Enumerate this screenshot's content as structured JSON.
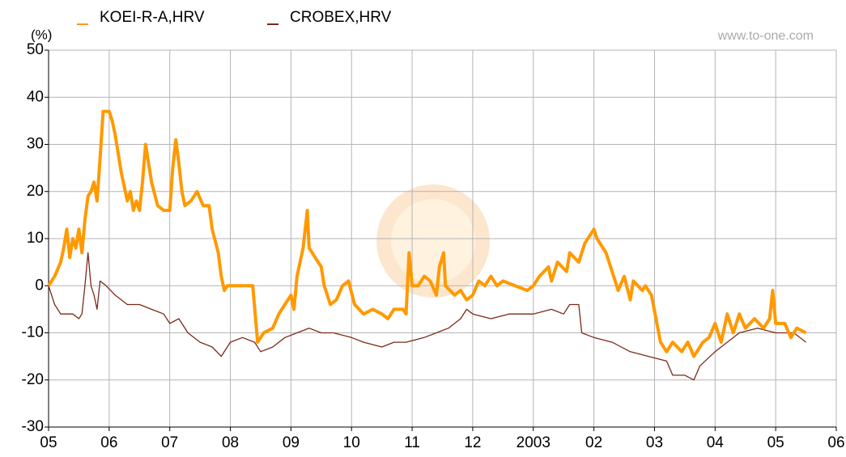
{
  "chart_data": {
    "type": "line",
    "y_label": "(%)",
    "watermark": "www.to-one.com",
    "xlim": [
      0,
      13
    ],
    "xticks": [
      {
        "value": 0,
        "label": "05"
      },
      {
        "value": 1,
        "label": "06"
      },
      {
        "value": 2,
        "label": "07"
      },
      {
        "value": 3,
        "label": "08"
      },
      {
        "value": 4,
        "label": "09"
      },
      {
        "value": 5,
        "label": "10"
      },
      {
        "value": 6,
        "label": "11"
      },
      {
        "value": 7,
        "label": "12"
      },
      {
        "value": 8,
        "label": "2003"
      },
      {
        "value": 9,
        "label": "02"
      },
      {
        "value": 10,
        "label": "03"
      },
      {
        "value": 11,
        "label": "04"
      },
      {
        "value": 12,
        "label": "05"
      },
      {
        "value": 13,
        "label": "06"
      }
    ],
    "ylim": [
      -30,
      50
    ],
    "yticks": [
      -30,
      -20,
      -10,
      0,
      10,
      20,
      30,
      40,
      50
    ],
    "grid": true,
    "legend": "top-left",
    "series": [
      {
        "name": "KOEI-R-A,HRV",
        "color": "#ff9900",
        "width": 4,
        "x": [
          0,
          0.1,
          0.2,
          0.25,
          0.3,
          0.35,
          0.4,
          0.45,
          0.5,
          0.55,
          0.6,
          0.65,
          0.7,
          0.75,
          0.8,
          0.85,
          0.9,
          1.0,
          1.05,
          1.1,
          1.2,
          1.3,
          1.35,
          1.4,
          1.45,
          1.5,
          1.55,
          1.6,
          1.65,
          1.7,
          1.8,
          1.9,
          2.0,
          2.05,
          2.1,
          2.15,
          2.2,
          2.25,
          2.35,
          2.45,
          2.55,
          2.65,
          2.7,
          2.8,
          2.85,
          2.9,
          2.95,
          3.37,
          3.45,
          3.55,
          3.7,
          3.8,
          3.9,
          4.0,
          4.05,
          4.1,
          4.2,
          4.27,
          4.3,
          4.4,
          4.5,
          4.55,
          4.6,
          4.65,
          4.75,
          4.85,
          4.95,
          5.05,
          5.2,
          5.35,
          5.5,
          5.6,
          5.7,
          5.85,
          5.9,
          5.95,
          6.0,
          6.1,
          6.2,
          6.3,
          6.4,
          6.45,
          6.52,
          6.55,
          6.7,
          6.8,
          6.9,
          7.0,
          7.1,
          7.2,
          7.3,
          7.4,
          7.5,
          7.7,
          7.9,
          8.0,
          8.1,
          8.25,
          8.3,
          8.4,
          8.55,
          8.6,
          8.75,
          8.85,
          9.0,
          9.05,
          9.2,
          9.3,
          9.4,
          9.5,
          9.6,
          9.65,
          9.8,
          9.85,
          9.95,
          10.1,
          10.2,
          10.3,
          10.45,
          10.55,
          10.65,
          10.8,
          10.9,
          11.0,
          11.1,
          11.2,
          11.3,
          11.4,
          11.5,
          11.65,
          11.8,
          11.9,
          11.95,
          12.0,
          12.15,
          12.25,
          12.35,
          12.5
        ],
        "values": [
          0,
          2,
          5,
          8,
          12,
          6,
          10,
          8,
          12,
          7,
          14,
          19,
          20,
          22,
          18,
          27,
          37,
          37,
          35,
          32,
          24,
          18,
          20,
          16,
          18,
          16,
          22,
          30,
          26,
          22,
          17,
          16,
          16,
          25,
          31,
          26,
          20,
          17,
          18,
          20,
          17,
          17,
          12,
          7,
          2,
          -1,
          0,
          0,
          -12,
          -10,
          -9,
          -6,
          -4,
          -2,
          -5,
          2,
          8,
          16,
          8,
          6,
          4,
          0,
          -2,
          -4,
          -3,
          0,
          1,
          -4,
          -6,
          -5,
          -6,
          -7,
          -5,
          -5,
          -6,
          7,
          0,
          0,
          2,
          1,
          -2,
          4,
          7,
          0,
          -2,
          -1,
          -3,
          -2,
          1,
          0,
          2,
          0,
          1,
          0,
          -1,
          0,
          2,
          4,
          1,
          5,
          3,
          7,
          5,
          9,
          12,
          10,
          7,
          3,
          -1,
          2,
          -3,
          1,
          -1,
          0,
          -2,
          -12,
          -14,
          -12,
          -14,
          -12,
          -15,
          -12,
          -11,
          -8,
          -12,
          -6,
          -10,
          -6,
          -9,
          -7,
          -9,
          -7,
          -1,
          -8,
          -8,
          -11,
          -9,
          -10
        ]
      },
      {
        "name": "CROBEX,HRV",
        "color": "#7a2a1a",
        "width": 1.3,
        "x": [
          0,
          0.1,
          0.2,
          0.4,
          0.5,
          0.55,
          0.6,
          0.65,
          0.7,
          0.75,
          0.8,
          0.85,
          0.95,
          1.1,
          1.3,
          1.5,
          1.7,
          1.9,
          2.0,
          2.15,
          2.3,
          2.5,
          2.7,
          2.85,
          3.0,
          3.2,
          3.4,
          3.5,
          3.7,
          3.9,
          4.1,
          4.3,
          4.5,
          4.7,
          5.0,
          5.2,
          5.5,
          5.7,
          5.9,
          6.2,
          6.4,
          6.6,
          6.8,
          6.9,
          7.0,
          7.3,
          7.6,
          8.0,
          8.3,
          8.5,
          8.6,
          8.75,
          8.8,
          9.0,
          9.3,
          9.6,
          9.9,
          10.2,
          10.3,
          10.5,
          10.65,
          10.75,
          11.0,
          11.2,
          11.4,
          11.7,
          12.0,
          12.3,
          12.5
        ],
        "values": [
          0,
          -4,
          -6,
          -6,
          -7,
          -6,
          0,
          7,
          0,
          -2,
          -5,
          1,
          0,
          -2,
          -4,
          -4,
          -5,
          -6,
          -8,
          -7,
          -10,
          -12,
          -13,
          -15,
          -12,
          -11,
          -12,
          -14,
          -13,
          -11,
          -10,
          -9,
          -10,
          -10,
          -11,
          -12,
          -13,
          -12,
          -12,
          -11,
          -10,
          -9,
          -7,
          -5,
          -6,
          -7,
          -6,
          -6,
          -5,
          -6,
          -4,
          -4,
          -10,
          -11,
          -12,
          -14,
          -15,
          -16,
          -19,
          -19,
          -20,
          -17,
          -14,
          -12,
          -10,
          -9,
          -10,
          -10,
          -12
        ]
      }
    ]
  }
}
